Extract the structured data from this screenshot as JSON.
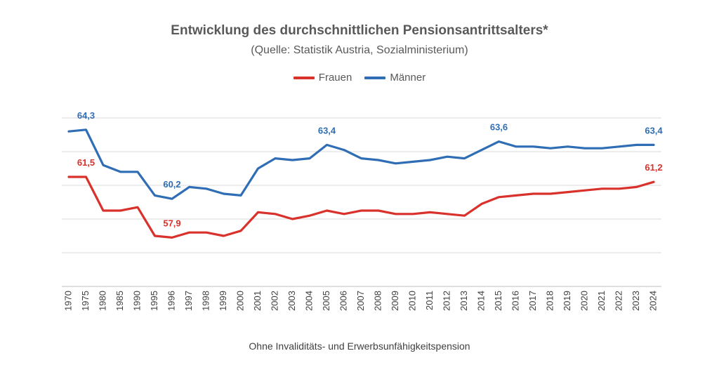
{
  "chart_data": {
    "type": "line",
    "title": "Entwicklung des durchschnittlichen Pensionsantrittsalters*",
    "subtitle": "(Quelle: Statistik Austria, Sozialministerium)",
    "footnote": "Ohne Invaliditäts- und Erwerbsunfähigkeitspension",
    "categories": [
      "1970",
      "1975",
      "1980",
      "1985",
      "1990",
      "1995",
      "1996",
      "1997",
      "1998",
      "1999",
      "2000",
      "2001",
      "2002",
      "2003",
      "2004",
      "2005",
      "2006",
      "2007",
      "2008",
      "2009",
      "2010",
      "2011",
      "2012",
      "2013",
      "2014",
      "2015",
      "2016",
      "2017",
      "2018",
      "2019",
      "2020",
      "2021",
      "2022",
      "2023",
      "2024"
    ],
    "series": [
      {
        "name": "Frauen",
        "color": "#d9312b",
        "values": [
          61.5,
          61.5,
          59.5,
          59.5,
          59.7,
          58.0,
          57.9,
          58.2,
          58.2,
          58.0,
          58.3,
          59.4,
          59.3,
          59.0,
          59.2,
          59.5,
          59.3,
          59.5,
          59.5,
          59.3,
          59.3,
          59.4,
          59.3,
          59.2,
          59.9,
          60.3,
          60.4,
          60.5,
          60.5,
          60.6,
          60.7,
          60.8,
          60.8,
          60.9,
          61.2
        ]
      },
      {
        "name": "Männer",
        "color": "#2f6db5",
        "values": [
          64.2,
          64.3,
          62.2,
          61.8,
          61.8,
          60.4,
          60.2,
          60.9,
          60.8,
          60.5,
          60.4,
          62.0,
          62.6,
          62.5,
          62.6,
          63.4,
          63.1,
          62.6,
          62.5,
          62.3,
          62.4,
          62.5,
          62.7,
          62.6,
          63.1,
          63.6,
          63.3,
          63.3,
          63.2,
          63.3,
          63.2,
          63.2,
          63.3,
          63.4,
          63.4
        ]
      }
    ],
    "data_labels": [
      {
        "series": 1,
        "index": 1,
        "text": "64,3"
      },
      {
        "series": 0,
        "index": 1,
        "text": "61,5"
      },
      {
        "series": 1,
        "index": 6,
        "text": "60,2"
      },
      {
        "series": 0,
        "index": 6,
        "text": "57,9"
      },
      {
        "series": 1,
        "index": 15,
        "text": "63,4"
      },
      {
        "series": 1,
        "index": 25,
        "text": "63,6"
      },
      {
        "series": 1,
        "index": 34,
        "text": "63,4"
      },
      {
        "series": 0,
        "index": 34,
        "text": "61,2"
      }
    ],
    "ylim": [
      55,
      66
    ],
    "y_gridlines": [
      55,
      57,
      59,
      61,
      63,
      65
    ],
    "grid": true,
    "legend_position": "top-center",
    "xlabel": "",
    "ylabel": ""
  }
}
